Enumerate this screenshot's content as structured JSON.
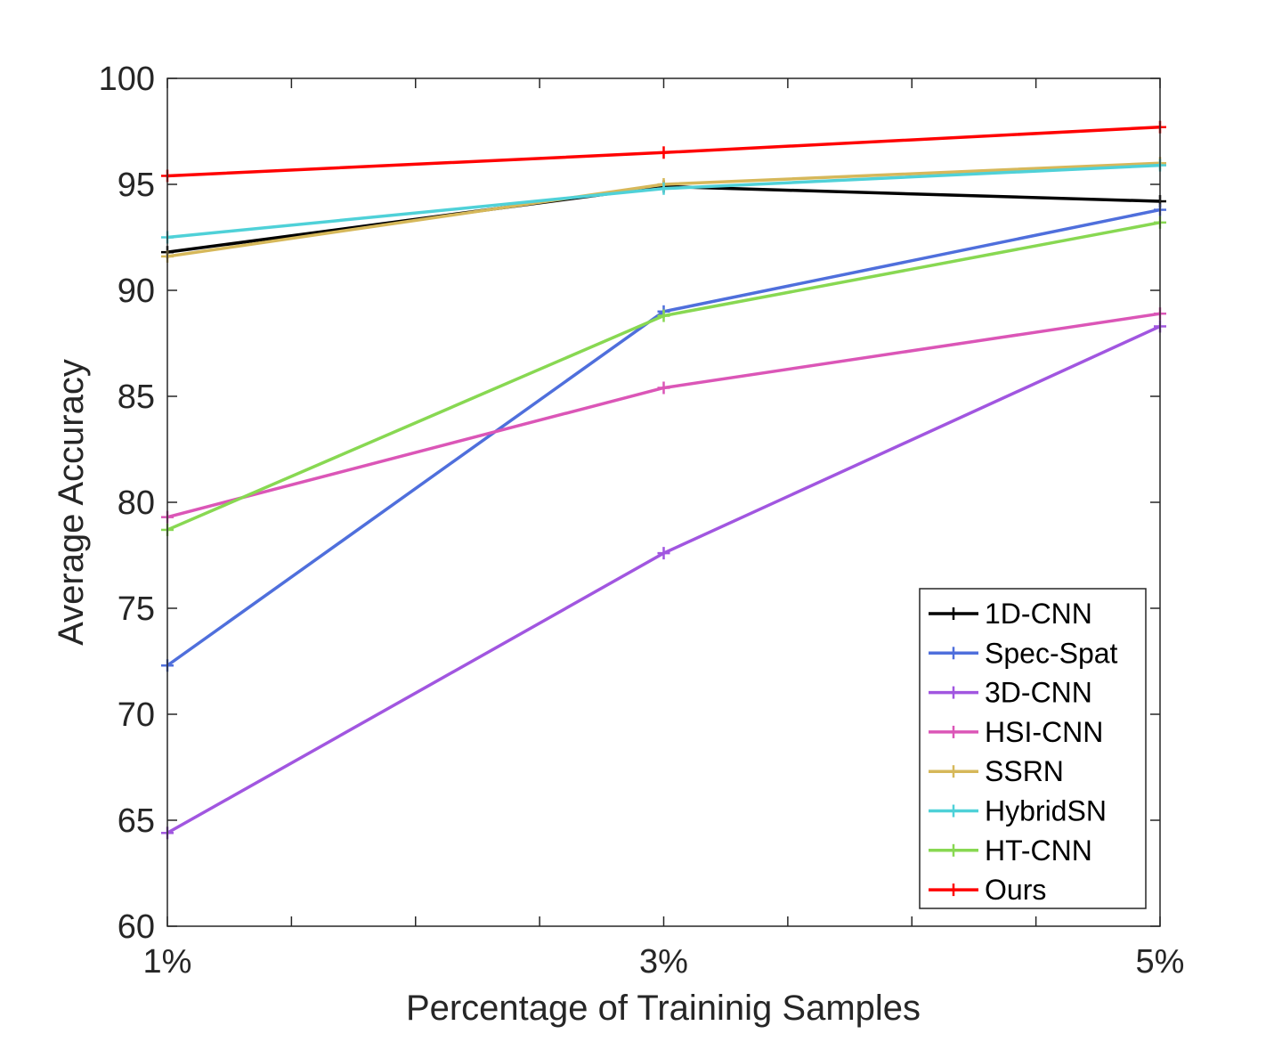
{
  "chart_data": {
    "type": "line",
    "title": "",
    "xlabel": "Percentage of Traininig Samples",
    "ylabel": "Average Accuracy",
    "categories": [
      "1%",
      "3%",
      "5%"
    ],
    "x": [
      1,
      3,
      5
    ],
    "xlim": [
      1,
      5
    ],
    "ylim": [
      60,
      100
    ],
    "yticks": [
      60,
      65,
      70,
      75,
      80,
      85,
      90,
      95,
      100
    ],
    "ytick_labels": [
      "60",
      "65",
      "70",
      "75",
      "80",
      "85",
      "90",
      "95",
      "100"
    ],
    "grid": false,
    "legend_position": "bottom-right",
    "marker": "+",
    "series": [
      {
        "name": "1D-CNN",
        "values": [
          91.8,
          94.9,
          94.2
        ],
        "color": "#000000"
      },
      {
        "name": "Spec-Spat",
        "values": [
          72.3,
          89.0,
          93.8
        ],
        "color": "#4f6fdc"
      },
      {
        "name": "3D-CNN",
        "values": [
          64.4,
          77.6,
          88.3
        ],
        "color": "#a156e0"
      },
      {
        "name": "HSI-CNN",
        "values": [
          79.3,
          85.4,
          88.9
        ],
        "color": "#db56b7"
      },
      {
        "name": "SSRN",
        "values": [
          91.6,
          95.0,
          96.0
        ],
        "color": "#d6b85a"
      },
      {
        "name": "HybridSN",
        "values": [
          92.5,
          94.8,
          95.9
        ],
        "color": "#4fd1d8"
      },
      {
        "name": "HT-CNN",
        "values": [
          78.7,
          88.8,
          93.2
        ],
        "color": "#88d852"
      },
      {
        "name": "Ours",
        "values": [
          95.4,
          96.5,
          97.7
        ],
        "color": "#ff0000"
      }
    ]
  }
}
